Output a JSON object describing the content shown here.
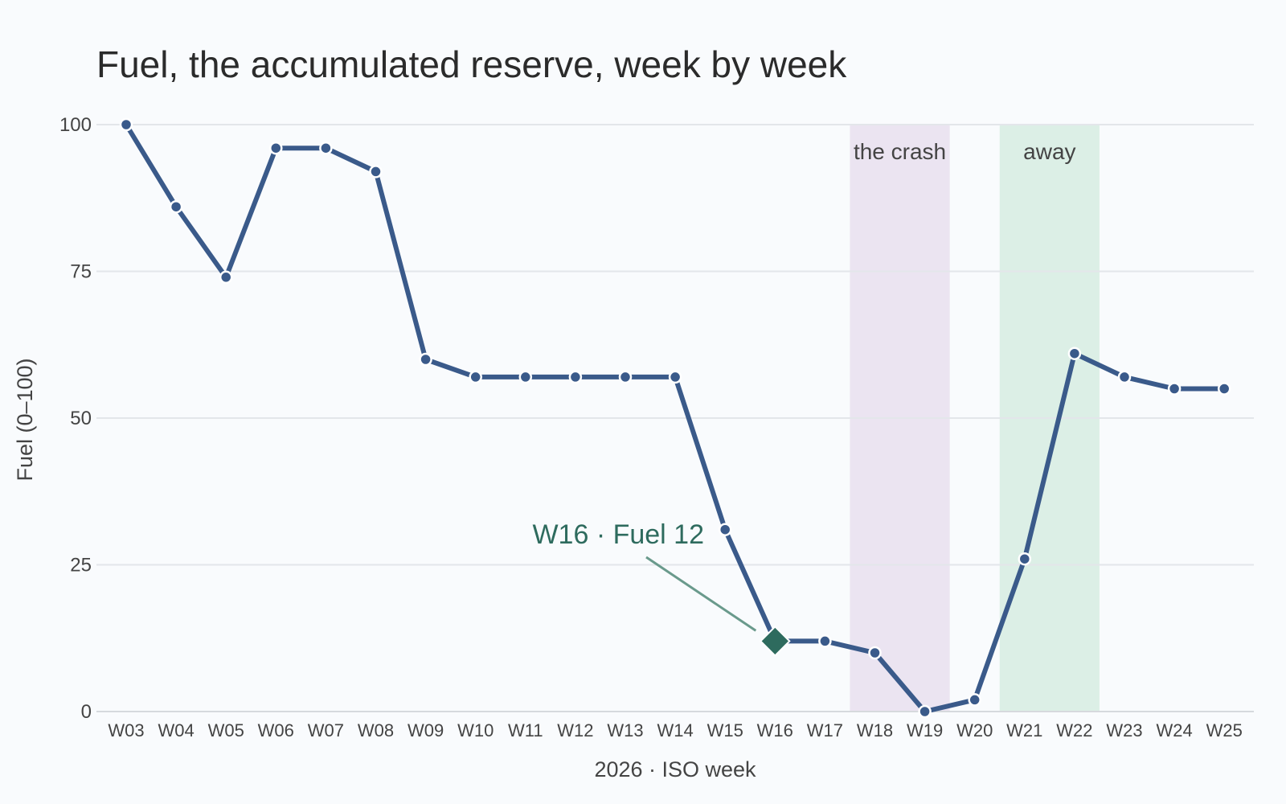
{
  "chart_data": {
    "type": "line",
    "title": "Fuel, the accumulated reserve, week by week",
    "xlabel": "2026 · ISO week",
    "ylabel": "Fuel (0–100)",
    "ylim": [
      0,
      100
    ],
    "yticks": [
      0,
      25,
      50,
      75,
      100
    ],
    "grid": true,
    "categories": [
      "W03",
      "W04",
      "W05",
      "W06",
      "W07",
      "W08",
      "W09",
      "W10",
      "W11",
      "W12",
      "W13",
      "W14",
      "W15",
      "W16",
      "W17",
      "W18",
      "W19",
      "W20",
      "W21",
      "W22",
      "W23",
      "W24",
      "W25"
    ],
    "series": [
      {
        "values": [
          100,
          86,
          74,
          96,
          96,
          92,
          60,
          57,
          57,
          57,
          57,
          57,
          31,
          12,
          12,
          10,
          0,
          2,
          26,
          61,
          57,
          55,
          55
        ],
        "color": "#3a5a8a"
      }
    ],
    "bands": [
      {
        "label": "the crash",
        "from": "W18",
        "to": "W19",
        "color": "#ebe4f1"
      },
      {
        "label": "away",
        "from": "W21",
        "to": "W22",
        "color": "#dcefe6"
      }
    ],
    "annotation": {
      "text": "W16 · Fuel 12",
      "x": "W16",
      "y": 12,
      "marker": "diamond",
      "color": "#2e6b5e"
    }
  }
}
